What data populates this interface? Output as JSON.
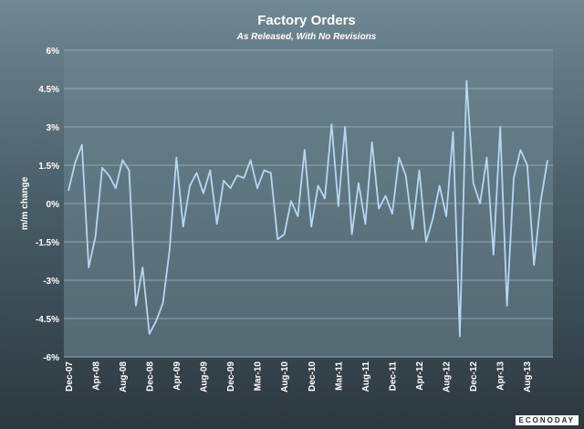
{
  "chart_data": {
    "type": "line",
    "title": "Factory Orders",
    "subtitle": "As Released, With No Revisions",
    "ylabel": "m/m change",
    "xlabel": "",
    "ylim": [
      -6,
      6
    ],
    "y_ticks": [
      "6%",
      "4.5%",
      "3%",
      "1.5%",
      "0%",
      "-1.5%",
      "-3%",
      "-4.5%",
      "-6%"
    ],
    "x_ticks": [
      "Dec-07",
      "Apr-08",
      "Aug-08",
      "Dec-08",
      "Apr-09",
      "Aug-09",
      "Dec-09",
      "Mar-10",
      "Aug-10",
      "Dec-10",
      "Mar-11",
      "Aug-11",
      "Dec-11",
      "Apr-12",
      "Aug-12",
      "Dec-12",
      "Apr-13",
      "Aug-13"
    ],
    "grid": true,
    "series": [
      {
        "color": "#b8d6ee",
        "values": [
          0.5,
          1.6,
          2.3,
          -2.5,
          -1.3,
          1.4,
          1.1,
          0.6,
          1.7,
          1.3,
          -4.0,
          -2.5,
          -5.1,
          -4.6,
          -3.9,
          -1.8,
          1.8,
          -0.9,
          0.7,
          1.2,
          0.4,
          1.3,
          -0.8,
          0.9,
          0.6,
          1.1,
          1.0,
          1.7,
          0.6,
          1.3,
          1.2,
          -1.4,
          -1.2,
          0.1,
          -0.5,
          2.1,
          -0.9,
          0.7,
          0.2,
          3.1,
          -0.1,
          3.0,
          -1.2,
          0.8,
          -0.8,
          2.4,
          -0.2,
          0.3,
          -0.4,
          1.8,
          1.1,
          -1.0,
          1.3,
          -1.5,
          -0.6,
          0.7,
          -0.5,
          2.8,
          -5.2,
          4.8,
          0.8,
          0.0,
          1.8,
          -2.0,
          3.0,
          -4.0,
          1.0,
          2.1,
          1.5,
          -2.4,
          0.1,
          1.7
        ]
      }
    ]
  },
  "brand": {
    "text": "ECONODAY"
  }
}
